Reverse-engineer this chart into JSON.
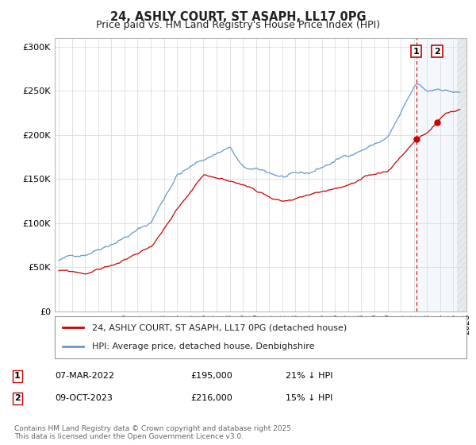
{
  "title": "24, ASHLY COURT, ST ASAPH, LL17 0PG",
  "subtitle": "Price paid vs. HM Land Registry's House Price Index (HPI)",
  "ylim": [
    0,
    310000
  ],
  "yticks": [
    0,
    50000,
    100000,
    150000,
    200000,
    250000,
    300000
  ],
  "title_fontsize": 10.5,
  "subtitle_fontsize": 9,
  "legend1_label": "24, ASHLY COURT, ST ASAPH, LL17 0PG (detached house)",
  "legend2_label": "HPI: Average price, detached house, Denbighshire",
  "line1_color": "#cc0000",
  "line2_color": "#6699cc",
  "annotation1_num": "1",
  "annotation2_num": "2",
  "sale1_date": "07-MAR-2022",
  "sale1_price": "£195,000",
  "sale1_hpi": "21% ↓ HPI",
  "sale2_date": "09-OCT-2023",
  "sale2_price": "£216,000",
  "sale2_hpi": "15% ↓ HPI",
  "copyright_text": "Contains HM Land Registry data © Crown copyright and database right 2025.\nThis data is licensed under the Open Government Licence v3.0.",
  "vline_color": "#cc0000",
  "background_color": "#ffffff",
  "grid_color": "#dddddd",
  "sale1_year": 2022.18,
  "sale2_year": 2023.77,
  "sale1_price_val": 195000,
  "sale2_price_val": 216000,
  "xmin": 1995.0,
  "xmax": 2026.0
}
